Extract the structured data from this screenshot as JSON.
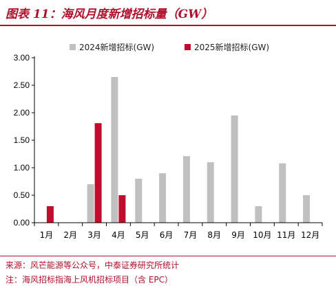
{
  "figure": {
    "title": "图表 11：海风月度新增招标量（GW）",
    "source": "来源：风芒能源等公众号，中泰证券研究所统计",
    "note": "注：海风招标指海上风机招标项目（含 EPC）"
  },
  "colors": {
    "accent": "#b0102b",
    "series_2024": "#c0c0c0",
    "series_2025": "#c00d2e"
  },
  "chart_data": {
    "type": "bar",
    "title": "",
    "xlabel": "",
    "ylabel": "",
    "categories": [
      "1月",
      "2月",
      "3月",
      "4月",
      "5月",
      "6月",
      "7月",
      "8月",
      "9月",
      "10月",
      "11月",
      "12月"
    ],
    "series": [
      {
        "name": "2024新增招标(GW)",
        "values": [
          0,
          0,
          0.7,
          2.65,
          0.8,
          0.9,
          1.21,
          1.1,
          1.95,
          0.3,
          1.08,
          0.5
        ]
      },
      {
        "name": "2025新增招标(GW)",
        "values": [
          0.3,
          0,
          1.81,
          0.5,
          null,
          null,
          null,
          null,
          null,
          null,
          null,
          null
        ]
      }
    ],
    "ylim": [
      0,
      3.0
    ],
    "yticks": [
      "0.00",
      "0.50",
      "1.00",
      "1.50",
      "2.00",
      "2.50",
      "3.00"
    ],
    "grid": false,
    "legend": "top-center"
  }
}
